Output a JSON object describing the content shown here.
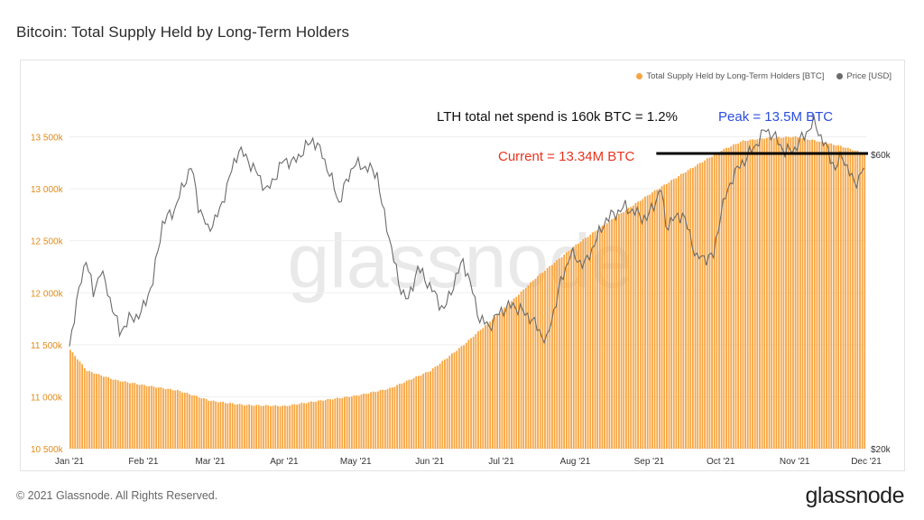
{
  "page": {
    "title": "Bitcoin: Total Supply Held by Long-Term Holders",
    "copyright": "© 2021 Glassnode. All Rights Reserved.",
    "brand": "glassnode",
    "watermark": "glassnode"
  },
  "colors": {
    "supply": "#f7a541",
    "price": "#6b6b6b",
    "left_axis_text": "#e08a1a",
    "current_text": "#e8341f",
    "peak_text": "#2a4de0",
    "reference_line": "#000000"
  },
  "annotations": {
    "net_spend": "LTH total net spend is 160k BTC = 1.2%",
    "peak": "Peak = 13.5M BTC",
    "current": "Current = 13.34M BTC"
  },
  "chart_data": {
    "type": "bar",
    "title": "Bitcoin: Total Supply Held by Long-Term Holders",
    "legend": [
      "Total Supply Held by Long-Term Holders [BTC]",
      "Price [USD]"
    ],
    "legend_position": "top-right",
    "grid": true,
    "x_range": [
      "2021-01-01",
      "2021-12-01"
    ],
    "x_ticks": [
      "Jan '21",
      "Feb '21",
      "Mar '21",
      "Apr '21",
      "May '21",
      "Jun '21",
      "Jul '21",
      "Aug '21",
      "Sep '21",
      "Oct '21",
      "Nov '21",
      "Dec '21"
    ],
    "left_axis": {
      "ticks": [
        "10 500k",
        "11 000k",
        "11 500k",
        "12 000k",
        "12 500k",
        "13 000k",
        "13 500k"
      ],
      "ylim": [
        10500000,
        13600000
      ]
    },
    "right_axis": {
      "scale": "log",
      "ticks": [
        "$20k",
        "$60k"
      ],
      "ylim": [
        20000,
        60000
      ]
    },
    "reference_line": {
      "value": 13340000,
      "label": "Current = 13.34M BTC",
      "from": "2021-09-04",
      "to": "2021-12-01"
    },
    "series": [
      {
        "name": "Total Supply Held by Long-Term Holders [BTC]",
        "type": "bar",
        "axis": "left",
        "keypoints": [
          [
            "2021-01-01",
            11450000
          ],
          [
            "2021-01-08",
            11250000
          ],
          [
            "2021-01-20",
            11160000
          ],
          [
            "2021-02-01",
            11110000
          ],
          [
            "2021-02-15",
            11060000
          ],
          [
            "2021-03-01",
            10960000
          ],
          [
            "2021-03-15",
            10920000
          ],
          [
            "2021-04-01",
            10910000
          ],
          [
            "2021-04-15",
            10960000
          ],
          [
            "2021-05-01",
            11010000
          ],
          [
            "2021-05-15",
            11080000
          ],
          [
            "2021-06-01",
            11250000
          ],
          [
            "2021-06-15",
            11500000
          ],
          [
            "2021-07-01",
            11830000
          ],
          [
            "2021-07-15",
            12140000
          ],
          [
            "2021-08-01",
            12460000
          ],
          [
            "2021-08-15",
            12690000
          ],
          [
            "2021-09-01",
            12950000
          ],
          [
            "2021-09-15",
            13150000
          ],
          [
            "2021-10-01",
            13370000
          ],
          [
            "2021-10-10",
            13460000
          ],
          [
            "2021-10-20",
            13490000
          ],
          [
            "2021-11-01",
            13500000
          ],
          [
            "2021-11-10",
            13460000
          ],
          [
            "2021-11-20",
            13410000
          ],
          [
            "2021-11-30",
            13340000
          ]
        ]
      },
      {
        "name": "Price [USD]",
        "type": "line",
        "axis": "right",
        "keypoints": [
          [
            "2021-01-01",
            29300
          ],
          [
            "2021-01-03",
            32800
          ],
          [
            "2021-01-08",
            40800
          ],
          [
            "2021-01-11",
            35500
          ],
          [
            "2021-01-14",
            39000
          ],
          [
            "2021-01-22",
            30900
          ],
          [
            "2021-01-26",
            32400
          ],
          [
            "2021-01-31",
            33100
          ],
          [
            "2021-02-05",
            37300
          ],
          [
            "2021-02-09",
            46400
          ],
          [
            "2021-02-14",
            48800
          ],
          [
            "2021-02-21",
            57400
          ],
          [
            "2021-02-24",
            49700
          ],
          [
            "2021-02-28",
            45200
          ],
          [
            "2021-03-05",
            48500
          ],
          [
            "2021-03-13",
            61200
          ],
          [
            "2021-03-18",
            57900
          ],
          [
            "2021-03-25",
            52300
          ],
          [
            "2021-04-01",
            58800
          ],
          [
            "2021-04-05",
            58200
          ],
          [
            "2021-04-13",
            63500
          ],
          [
            "2021-04-17",
            60000
          ],
          [
            "2021-04-24",
            50100
          ],
          [
            "2021-04-30",
            57800
          ],
          [
            "2021-05-05",
            57300
          ],
          [
            "2021-05-10",
            55800
          ],
          [
            "2021-05-12",
            49500
          ],
          [
            "2021-05-19",
            37000
          ],
          [
            "2021-05-23",
            34700
          ],
          [
            "2021-05-27",
            39300
          ],
          [
            "2021-06-01",
            36700
          ],
          [
            "2021-06-07",
            33500
          ],
          [
            "2021-06-15",
            40400
          ],
          [
            "2021-06-22",
            32400
          ],
          [
            "2021-06-26",
            31600
          ],
          [
            "2021-07-01",
            33500
          ],
          [
            "2021-07-06",
            34200
          ],
          [
            "2021-07-13",
            32700
          ],
          [
            "2021-07-20",
            29800
          ],
          [
            "2021-07-26",
            37200
          ],
          [
            "2021-07-30",
            41400
          ],
          [
            "2021-08-05",
            39700
          ],
          [
            "2021-08-14",
            47100
          ],
          [
            "2021-08-22",
            49300
          ],
          [
            "2021-08-31",
            47100
          ],
          [
            "2021-09-06",
            52700
          ],
          [
            "2021-09-08",
            46100
          ],
          [
            "2021-09-15",
            48100
          ],
          [
            "2021-09-21",
            40700
          ],
          [
            "2021-09-28",
            41000
          ],
          [
            "2021-10-01",
            48200
          ],
          [
            "2021-10-06",
            55300
          ],
          [
            "2021-10-15",
            61600
          ],
          [
            "2021-10-20",
            66000
          ],
          [
            "2021-10-25",
            63000
          ],
          [
            "2021-10-28",
            60500
          ],
          [
            "2021-11-01",
            61300
          ],
          [
            "2021-11-09",
            67600
          ],
          [
            "2021-11-12",
            64200
          ],
          [
            "2021-11-18",
            56900
          ],
          [
            "2021-11-21",
            59700
          ],
          [
            "2021-11-26",
            53600
          ],
          [
            "2021-11-30",
            57000
          ]
        ]
      }
    ]
  }
}
